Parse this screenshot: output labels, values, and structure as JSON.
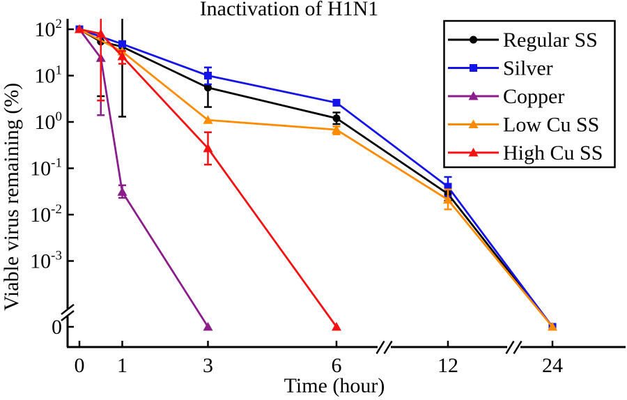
{
  "chart_data": {
    "type": "line",
    "title": "Inactivation of H1N1",
    "xlabel": "Time (hour)",
    "ylabel": "Viable virus remaining (%)",
    "x_axis": {
      "ticks": [
        {
          "label": "0",
          "t": 0
        },
        {
          "label": "1",
          "t": 1
        },
        {
          "label": "3",
          "t": 3
        },
        {
          "label": "6",
          "t": 6
        },
        {
          "label": "12",
          "t": 12
        },
        {
          "label": "24",
          "t": 24
        }
      ],
      "breaks_between": [
        [
          6,
          12
        ],
        [
          12,
          24
        ]
      ]
    },
    "y_axis": {
      "scale": "log",
      "zero_break": true,
      "ticks": [
        {
          "base": "10",
          "exp": "2",
          "value": 100
        },
        {
          "base": "10",
          "exp": "1",
          "value": 10
        },
        {
          "base": "10",
          "exp": "0",
          "value": 1
        },
        {
          "base": "10",
          "exp": "-1",
          "value": 0.1
        },
        {
          "base": "10",
          "exp": "-2",
          "value": 0.01
        },
        {
          "base": "10",
          "exp": "-3",
          "value": 0.001
        },
        {
          "base": "0",
          "exp": "",
          "value": 0
        }
      ]
    },
    "legend": {
      "position": "top-right",
      "border": true
    },
    "series": [
      {
        "name": "Regular SS",
        "color": "#000000",
        "marker": "circle",
        "points": [
          {
            "t": 0,
            "v": 100
          },
          {
            "t": 0.5,
            "v": 54,
            "err_lo": 3.6,
            "err_hi_clipped": true
          },
          {
            "t": 1,
            "v": 42,
            "err_lo": 1.3,
            "err_hi_clipped": true
          },
          {
            "t": 3,
            "v": 5.5,
            "err_lo": 2.1,
            "err_hi": 15
          },
          {
            "t": 6,
            "v": 1.2,
            "err_lo": 0.9,
            "err_hi": 1.6
          },
          {
            "t": 12,
            "v": 0.028,
            "err_lo": 0.02,
            "err_hi": 0.04
          },
          {
            "t": 24,
            "v": 0
          }
        ]
      },
      {
        "name": "Silver",
        "color": "#1414e8",
        "marker": "square",
        "points": [
          {
            "t": 0,
            "v": 100
          },
          {
            "t": 1,
            "v": 48
          },
          {
            "t": 3,
            "v": 10,
            "err_lo": 6.5,
            "err_hi": 15
          },
          {
            "t": 6,
            "v": 2.6
          },
          {
            "t": 12,
            "v": 0.04,
            "err_lo": 0.025,
            "err_hi": 0.065
          },
          {
            "t": 24,
            "v": 0
          }
        ]
      },
      {
        "name": "Copper",
        "color": "#8b1d8b",
        "marker": "triangle",
        "points": [
          {
            "t": 0,
            "v": 100
          },
          {
            "t": 0.5,
            "v": 24,
            "err_lo": 1.4
          },
          {
            "t": 1,
            "v": 0.031,
            "err_lo": 0.023,
            "err_hi": 0.043
          },
          {
            "t": 3,
            "v": 0
          }
        ]
      },
      {
        "name": "Low Cu SS",
        "color": "#ff8c00",
        "marker": "triangle",
        "points": [
          {
            "t": 0,
            "v": 100
          },
          {
            "t": 1,
            "v": 33
          },
          {
            "t": 3,
            "v": 1.1
          },
          {
            "t": 6,
            "v": 0.68,
            "err_lo": 0.54,
            "err_hi": 0.8
          },
          {
            "t": 12,
            "v": 0.021,
            "err_lo": 0.013,
            "err_hi": 0.035
          },
          {
            "t": 24,
            "v": 0
          }
        ]
      },
      {
        "name": "High Cu SS",
        "color": "#f51111",
        "marker": "triangle",
        "points": [
          {
            "t": 0,
            "v": 100
          },
          {
            "t": 0.5,
            "v": 80,
            "err_lo": 2.9,
            "err_hi_clipped": true
          },
          {
            "t": 1,
            "v": 26,
            "err_lo": 18,
            "err_hi": 34
          },
          {
            "t": 3,
            "v": 0.27,
            "err_lo": 0.12,
            "err_hi": 0.6
          },
          {
            "t": 6,
            "v": 0
          }
        ]
      }
    ]
  }
}
